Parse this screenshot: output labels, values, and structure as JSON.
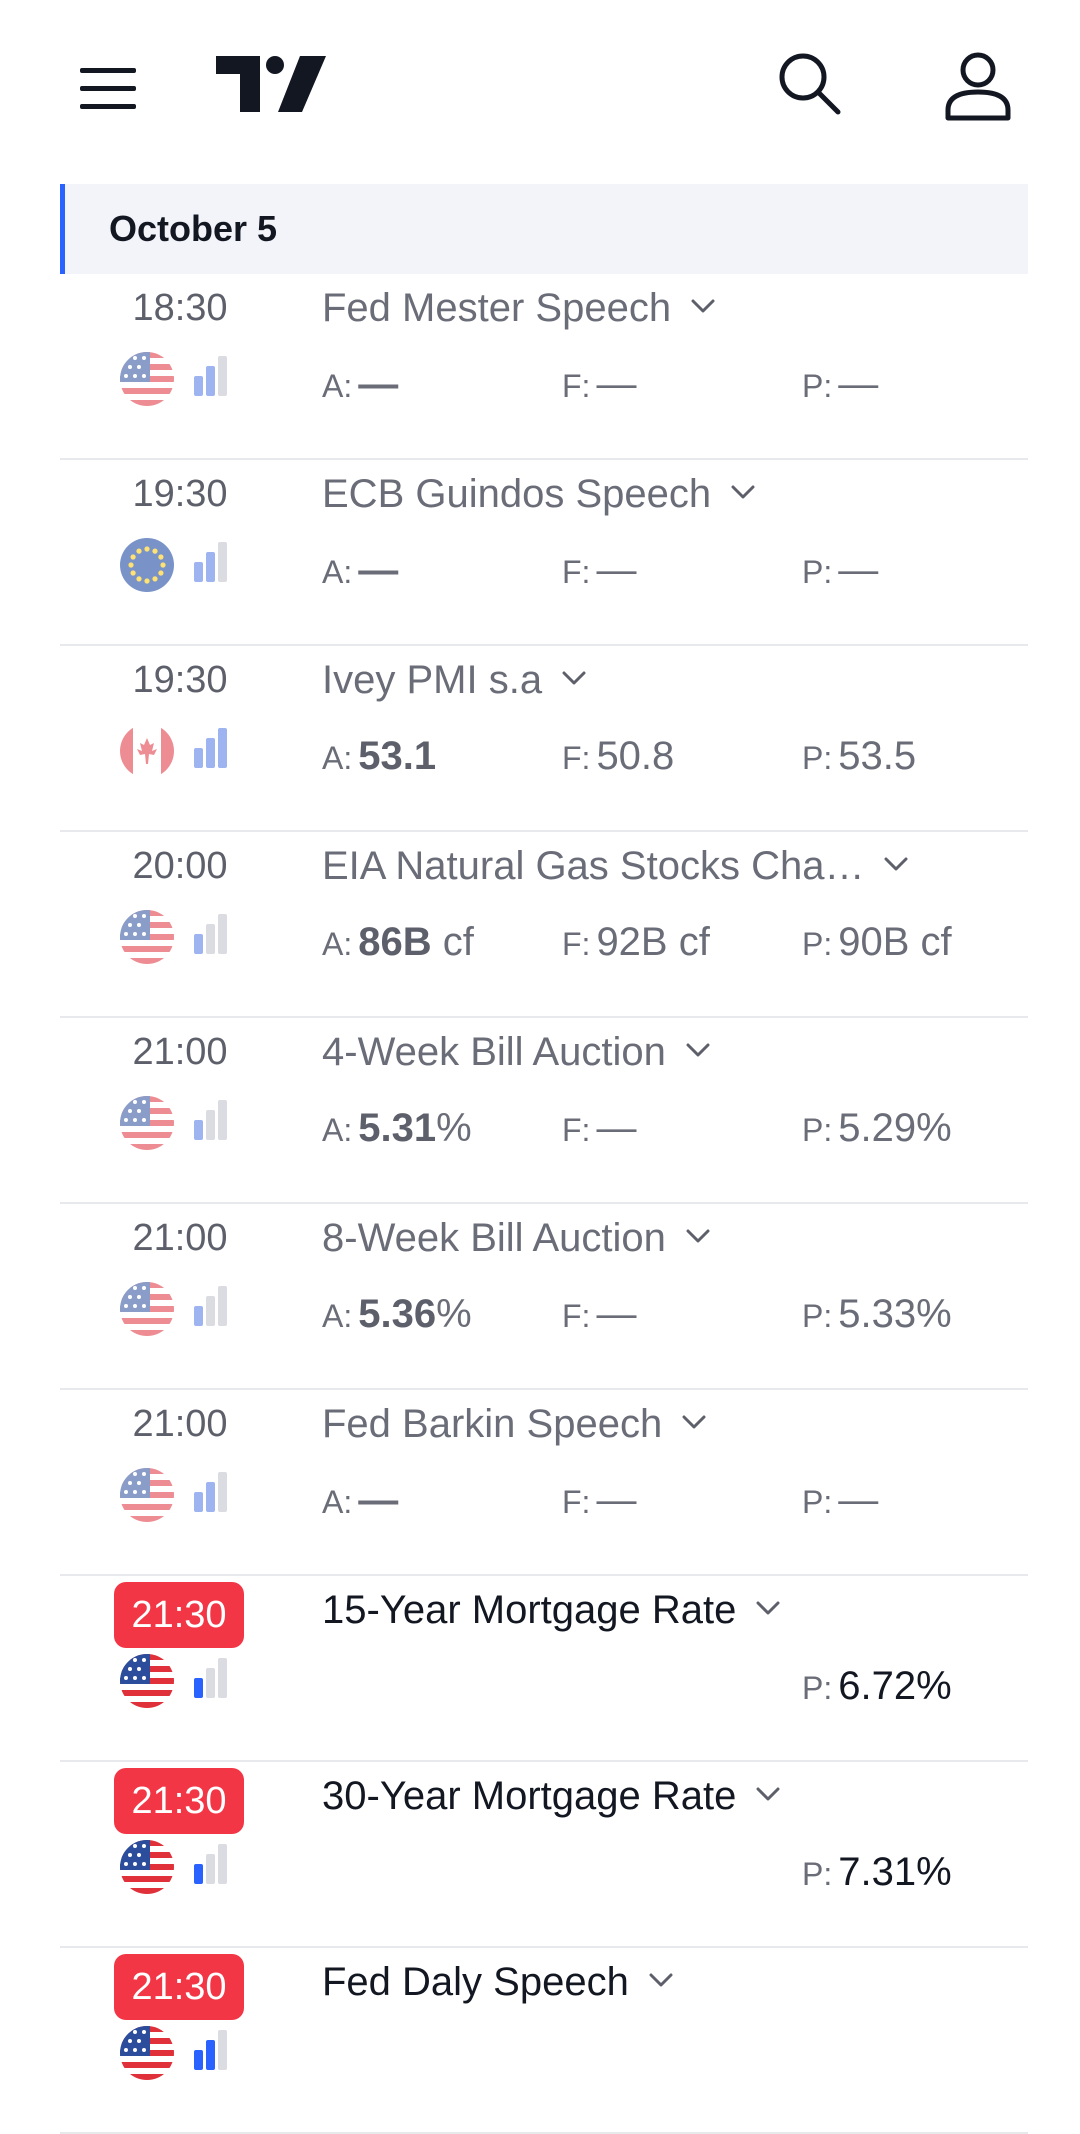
{
  "header": {
    "date": "October 5"
  },
  "events": [
    {
      "time": "18:30",
      "country": "US",
      "importance": 2,
      "title": "Fed Mester Speech",
      "highlight": false,
      "actual": "—",
      "forecast": "—",
      "previous": "—"
    },
    {
      "time": "19:30",
      "country": "EU",
      "importance": 2,
      "title": "ECB Guindos Speech",
      "highlight": false,
      "actual": "—",
      "forecast": "—",
      "previous": "—"
    },
    {
      "time": "19:30",
      "country": "CA",
      "importance": 3,
      "title": "Ivey PMI s.a",
      "highlight": false,
      "actual_bold": "53.1",
      "actual_unit": "",
      "forecast": "50.8",
      "previous": "53.5"
    },
    {
      "time": "20:00",
      "country": "US",
      "importance": 1,
      "title": "EIA Natural Gas Stocks Cha…",
      "highlight": false,
      "actual_bold": "86B",
      "actual_unit": " cf",
      "forecast": "92B cf",
      "previous": "90B cf"
    },
    {
      "time": "21:00",
      "country": "US",
      "importance": 1,
      "title": "4-Week Bill Auction",
      "highlight": false,
      "actual_bold": "5.31",
      "actual_unit": "%",
      "forecast": "—",
      "previous": "5.29%"
    },
    {
      "time": "21:00",
      "country": "US",
      "importance": 1,
      "title": "8-Week Bill Auction",
      "highlight": false,
      "actual_bold": "5.36",
      "actual_unit": "%",
      "forecast": "—",
      "previous": "5.33%"
    },
    {
      "time": "21:00",
      "country": "US",
      "importance": 2,
      "title": "Fed Barkin Speech",
      "highlight": false,
      "actual": "—",
      "forecast": "—",
      "previous": "—"
    },
    {
      "time": "21:30",
      "country": "US",
      "importance": 1,
      "title": "15-Year Mortgage Rate",
      "highlight": true,
      "previous": "6.72%"
    },
    {
      "time": "21:30",
      "country": "US",
      "importance": 1,
      "title": "30-Year Mortgage Rate",
      "highlight": true,
      "previous": "7.31%"
    },
    {
      "time": "21:30",
      "country": "US",
      "importance": 2,
      "title": "Fed Daly Speech",
      "highlight": true
    }
  ],
  "labels": {
    "actual": "A:",
    "forecast": "F:",
    "previous": "P:"
  },
  "colors": {
    "accent": "#2962ff",
    "live_time_bg": "#f23645",
    "header_bg": "#f2f4f9"
  },
  "icons": {
    "menu": "menu-icon",
    "logo": "tradingview-logo",
    "search": "search-icon",
    "user": "user-icon"
  }
}
